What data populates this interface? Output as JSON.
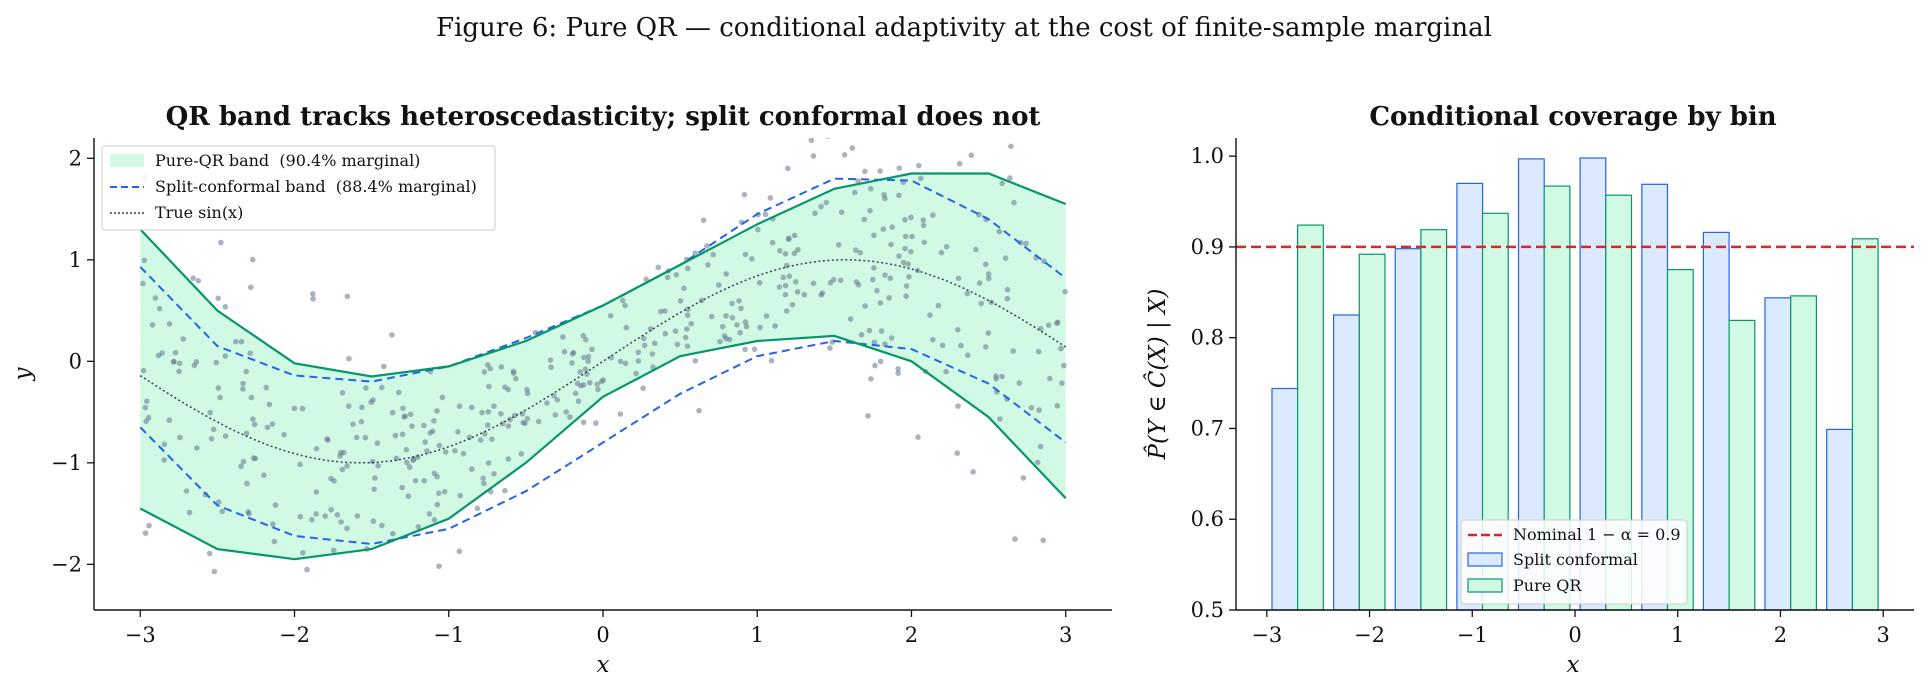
{
  "figure_title": "Figure 6: Pure QR — conditional adaptivity at the cost of finite-sample marginal",
  "colors": {
    "qr": "#059669",
    "qr_fill": "#d1fae5",
    "split": "#2563eb",
    "split_fill": "#dbeafe",
    "nominal": "#dc2626",
    "truth": "#374151",
    "points": "#64748b"
  },
  "chart_data": [
    {
      "type": "line",
      "title": "QR band tracks heteroscedasticity; split conformal does not",
      "xlabel": "x",
      "ylabel": "y",
      "xlim": [
        -3.3,
        3.3
      ],
      "ylim": [
        -2.45,
        2.2
      ],
      "xticks": [
        -3,
        -2,
        -1,
        0,
        1,
        2,
        3
      ],
      "xtick_labels": [
        "−3",
        "−2",
        "−1",
        "0",
        "1",
        "2",
        "3"
      ],
      "yticks": [
        -2,
        -1,
        0,
        1,
        2
      ],
      "ytick_labels": [
        "−2",
        "−1",
        "0",
        "1",
        "2"
      ],
      "grid": false,
      "legend_position": "top-left",
      "x": [
        -3.0,
        -2.5,
        -2.0,
        -1.5,
        -1.0,
        -0.5,
        0.0,
        0.5,
        1.0,
        1.5,
        2.0,
        2.5,
        3.0
      ],
      "series": [
        {
          "name": "Pure-QR band  (90.4% marginal)",
          "kind": "band",
          "lower": [
            -1.45,
            -1.85,
            -1.95,
            -1.85,
            -1.55,
            -1.0,
            -0.35,
            0.05,
            0.2,
            0.25,
            0.0,
            -0.55,
            -1.35
          ],
          "upper": [
            1.3,
            0.5,
            -0.02,
            -0.15,
            -0.05,
            0.2,
            0.55,
            0.95,
            1.35,
            1.7,
            1.85,
            1.85,
            1.55
          ]
        },
        {
          "name": "Split-conformal band  (88.4% marginal)",
          "kind": "dashed",
          "lower": [
            -0.65,
            -1.42,
            -1.72,
            -1.8,
            -1.65,
            -1.28,
            -0.8,
            -0.32,
            0.05,
            0.2,
            0.12,
            -0.22,
            -0.8
          ],
          "upper": [
            0.93,
            0.15,
            -0.14,
            -0.2,
            -0.05,
            0.23,
            0.55,
            0.95,
            1.45,
            1.8,
            1.78,
            1.4,
            0.82
          ]
        },
        {
          "name": "True sin(x)",
          "kind": "dotted",
          "function": "sin"
        }
      ],
      "scatter_points": 500
    },
    {
      "type": "bar",
      "title": "Conditional coverage by bin",
      "xlabel": "x",
      "ylabel": "P̂(Y ∈ Ĉ(X) | X)",
      "xlim": [
        -3.3,
        3.3
      ],
      "ylim": [
        0.5,
        1.02
      ],
      "xticks": [
        -3,
        -2,
        -1,
        0,
        1,
        2,
        3
      ],
      "xtick_labels": [
        "−3",
        "−2",
        "−1",
        "0",
        "1",
        "2",
        "3"
      ],
      "yticks": [
        0.5,
        0.6,
        0.7,
        0.8,
        0.9,
        1.0
      ],
      "ytick_labels": [
        "0.5",
        "0.6",
        "0.7",
        "0.8",
        "0.9",
        "1.0"
      ],
      "grid": false,
      "legend_position": "bottom-right",
      "bin_centers": [
        -2.7,
        -2.1,
        -1.5,
        -0.9,
        -0.3,
        0.3,
        0.9,
        1.5,
        2.1,
        2.7
      ],
      "reference_line": {
        "label": "Nominal 1 − α = 0.9",
        "value": 0.9
      },
      "series": [
        {
          "name": "Split conformal",
          "values": [
            0.744,
            0.825,
            0.898,
            0.97,
            0.997,
            0.998,
            0.969,
            0.916,
            0.844,
            0.699
          ]
        },
        {
          "name": "Pure QR",
          "values": [
            0.924,
            0.892,
            0.919,
            0.937,
            0.967,
            0.957,
            0.875,
            0.819,
            0.846,
            0.909
          ]
        }
      ]
    }
  ]
}
